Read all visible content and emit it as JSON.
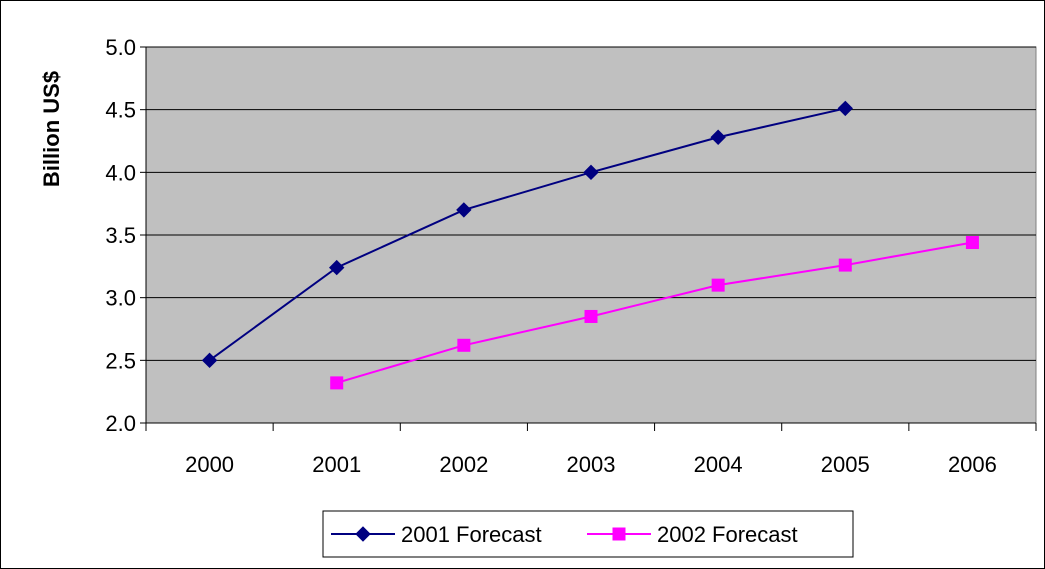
{
  "chart_data": {
    "type": "line",
    "title": "",
    "xlabel": "",
    "ylabel": "Billion US$",
    "categories": [
      "2000",
      "2001",
      "2002",
      "2003",
      "2004",
      "2005",
      "2006"
    ],
    "ylim": [
      2.0,
      5.0
    ],
    "yticks": [
      "2.0",
      "2.5",
      "3.0",
      "3.5",
      "4.0",
      "4.5",
      "5.0"
    ],
    "grid": true,
    "legend_position": "bottom",
    "series": [
      {
        "name": "2001 Forecast",
        "color": "#000080",
        "marker": "diamond",
        "values": [
          2.5,
          3.24,
          3.7,
          4.0,
          4.28,
          4.51,
          null
        ]
      },
      {
        "name": "2002 Forecast",
        "color": "#ff00ff",
        "marker": "square",
        "values": [
          null,
          2.32,
          2.62,
          2.85,
          3.1,
          3.26,
          3.44
        ]
      }
    ],
    "plot_background": "#c0c0c0"
  }
}
